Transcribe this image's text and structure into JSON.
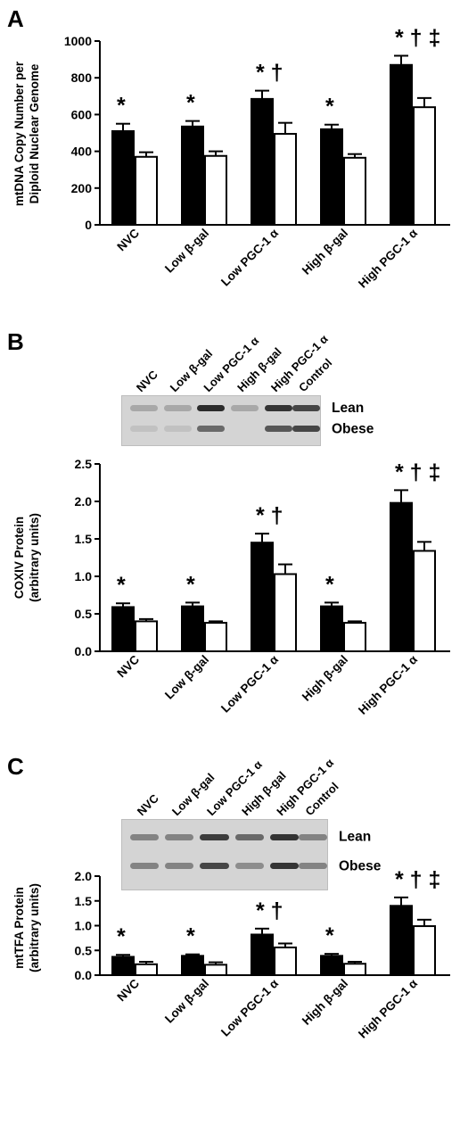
{
  "panels": [
    {
      "letter": "A",
      "ylabel_lines": [
        "mtDNA Copy Number per",
        "Diploid Nuclear Genome"
      ],
      "blot": null
    },
    {
      "letter": "B",
      "ylabel_lines": [
        "COXIV Protein",
        "(arbitrary units)"
      ],
      "blot": {
        "lane_labels": [
          "NVC",
          "Low β-gal",
          "Low PGC-1 α",
          "High β-gal",
          "High PGC-1 α",
          "Control"
        ],
        "row_labels": [
          "Lean",
          "Obese"
        ]
      }
    },
    {
      "letter": "C",
      "ylabel_lines": [
        "mtTFA Protein",
        "(arbitrary units)"
      ],
      "blot": {
        "lane_labels": [
          "NVC",
          "Low β-gal",
          "Low PGC-1 α",
          "High β-gal",
          "High PGC-1 α",
          "Control"
        ],
        "row_labels": [
          "Lean",
          "Obese"
        ]
      }
    }
  ],
  "chart_data": [
    {
      "type": "bar",
      "categories": [
        "NVC",
        "Low β-gal",
        "Low PGC-1 α",
        "High β-gal",
        "High PGC-1 α"
      ],
      "ylim": [
        0,
        1000
      ],
      "yticks": [
        "0",
        "200",
        "400",
        "600",
        "800",
        "1000"
      ],
      "series": [
        {
          "fill": "black",
          "values": [
            510,
            535,
            685,
            520,
            870
          ],
          "errors": [
            40,
            30,
            45,
            25,
            50
          ]
        },
        {
          "fill": "white",
          "values": [
            370,
            375,
            495,
            365,
            640
          ],
          "errors": [
            25,
            25,
            60,
            20,
            50
          ]
        }
      ],
      "annotations": [
        "*",
        "*",
        "* †",
        "*",
        "* † ‡"
      ]
    },
    {
      "type": "bar",
      "categories": [
        "NVC",
        "Low β-gal",
        "Low PGC-1 α",
        "High β-gal",
        "High PGC-1 α"
      ],
      "ylim": [
        0,
        2.5
      ],
      "yticks": [
        "0.0",
        "0.5",
        "1.0",
        "1.5",
        "2.0",
        "2.5"
      ],
      "series": [
        {
          "fill": "black",
          "values": [
            0.59,
            0.6,
            1.45,
            0.6,
            1.98
          ],
          "errors": [
            0.05,
            0.05,
            0.12,
            0.05,
            0.17
          ]
        },
        {
          "fill": "white",
          "values": [
            0.4,
            0.38,
            1.03,
            0.38,
            1.34
          ],
          "errors": [
            0.03,
            0.02,
            0.13,
            0.02,
            0.12
          ]
        }
      ],
      "annotations": [
        "*",
        "*",
        "* †",
        "*",
        "* † ‡"
      ]
    },
    {
      "type": "bar",
      "categories": [
        "NVC",
        "Low β-gal",
        "Low PGC-1 α",
        "High β-gal",
        "High PGC-1 α"
      ],
      "ylim": [
        0,
        2.0
      ],
      "yticks": [
        "0.0",
        "0.5",
        "1.0",
        "1.5",
        "2.0"
      ],
      "series": [
        {
          "fill": "black",
          "values": [
            0.37,
            0.39,
            0.82,
            0.39,
            1.4
          ],
          "errors": [
            0.04,
            0.03,
            0.12,
            0.04,
            0.17
          ]
        },
        {
          "fill": "white",
          "values": [
            0.22,
            0.21,
            0.56,
            0.23,
            0.99
          ],
          "errors": [
            0.05,
            0.05,
            0.08,
            0.04,
            0.13
          ]
        }
      ],
      "annotations": [
        "*",
        "*",
        "* †",
        "*",
        "* † ‡"
      ]
    }
  ]
}
